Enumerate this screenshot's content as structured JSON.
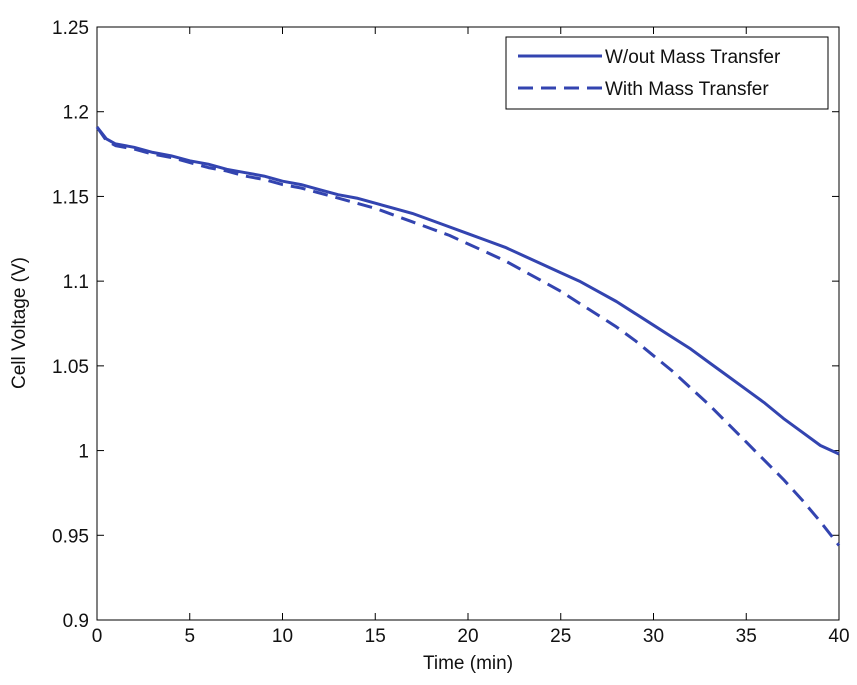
{
  "chart_data": {
    "type": "line",
    "title": "",
    "xlabel": "Time (min)",
    "ylabel": "Cell Voltage (V)",
    "xlim": [
      0,
      40
    ],
    "ylim": [
      0.9,
      1.25
    ],
    "xticks": [
      "0",
      "5",
      "10",
      "15",
      "20",
      "25",
      "30",
      "35",
      "40"
    ],
    "yticks": [
      "0.9",
      "0.95",
      "1",
      "1.05",
      "1.1",
      "1.15",
      "1.2",
      "1.25"
    ],
    "grid": false,
    "legend_position": "top-right",
    "line_color": "#3344b0",
    "series": [
      {
        "name": "W/out Mass Transfer",
        "style": "solid",
        "x": [
          0,
          0.5,
          1,
          2,
          3,
          4,
          5,
          6,
          7,
          8,
          9,
          10,
          11,
          12,
          13,
          14,
          15,
          16,
          17,
          18,
          19,
          20,
          21,
          22,
          23,
          24,
          25,
          26,
          27,
          28,
          29,
          30,
          31,
          32,
          33,
          34,
          35,
          36,
          37,
          38,
          39,
          40
        ],
        "y": [
          1.191,
          1.184,
          1.181,
          1.179,
          1.176,
          1.174,
          1.171,
          1.169,
          1.166,
          1.164,
          1.162,
          1.159,
          1.157,
          1.154,
          1.151,
          1.149,
          1.146,
          1.143,
          1.14,
          1.136,
          1.132,
          1.128,
          1.124,
          1.12,
          1.115,
          1.11,
          1.105,
          1.1,
          1.094,
          1.088,
          1.081,
          1.074,
          1.067,
          1.06,
          1.052,
          1.044,
          1.036,
          1.028,
          1.019,
          1.011,
          1.003,
          0.998
        ]
      },
      {
        "name": "With Mass Transfer",
        "style": "dashed",
        "x": [
          0,
          0.5,
          1,
          2,
          3,
          4,
          5,
          6,
          7,
          8,
          9,
          10,
          11,
          12,
          13,
          14,
          15,
          16,
          17,
          18,
          19,
          20,
          21,
          22,
          23,
          24,
          25,
          26,
          27,
          28,
          29,
          30,
          31,
          32,
          33,
          34,
          35,
          36,
          37,
          38,
          39,
          40
        ],
        "y": [
          1.191,
          1.183,
          1.18,
          1.178,
          1.175,
          1.173,
          1.17,
          1.167,
          1.165,
          1.162,
          1.16,
          1.157,
          1.155,
          1.152,
          1.149,
          1.146,
          1.143,
          1.139,
          1.135,
          1.131,
          1.127,
          1.122,
          1.117,
          1.112,
          1.106,
          1.1,
          1.094,
          1.087,
          1.08,
          1.073,
          1.065,
          1.056,
          1.047,
          1.037,
          1.027,
          1.016,
          1.005,
          0.994,
          0.983,
          0.971,
          0.958,
          0.944
        ]
      }
    ]
  }
}
